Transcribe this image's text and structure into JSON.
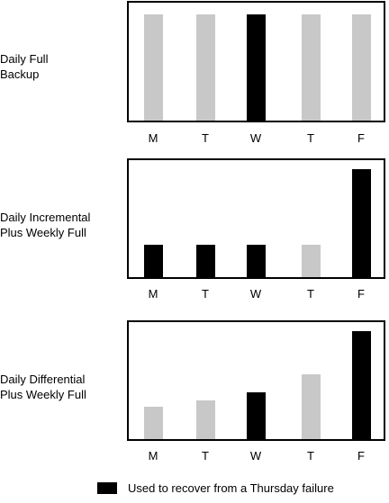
{
  "legend": {
    "used_label": "Used to recover from a Thursday failure",
    "used_color": "#000000",
    "unused_color": "#c8c8c8"
  },
  "chart_data": [
    {
      "type": "bar",
      "title": "Daily Full\nBackup",
      "categories": [
        "M",
        "T",
        "W",
        "T",
        "F"
      ],
      "values": [
        1,
        1,
        1,
        1,
        1
      ],
      "used_for_recovery": [
        false,
        false,
        true,
        false,
        false
      ]
    },
    {
      "type": "bar",
      "title": "Daily Incremental\nPlus Weekly Full",
      "categories": [
        "M",
        "T",
        "W",
        "T",
        "F"
      ],
      "values": [
        0.3,
        0.3,
        0.3,
        0.3,
        1
      ],
      "used_for_recovery": [
        true,
        true,
        true,
        false,
        true
      ]
    },
    {
      "type": "bar",
      "title": "Daily Differential\nPlus Weekly Full",
      "categories": [
        "M",
        "T",
        "W",
        "T",
        "F"
      ],
      "values": [
        0.3,
        0.36,
        0.43,
        0.6,
        1
      ],
      "used_for_recovery": [
        false,
        false,
        true,
        false,
        true
      ]
    }
  ]
}
